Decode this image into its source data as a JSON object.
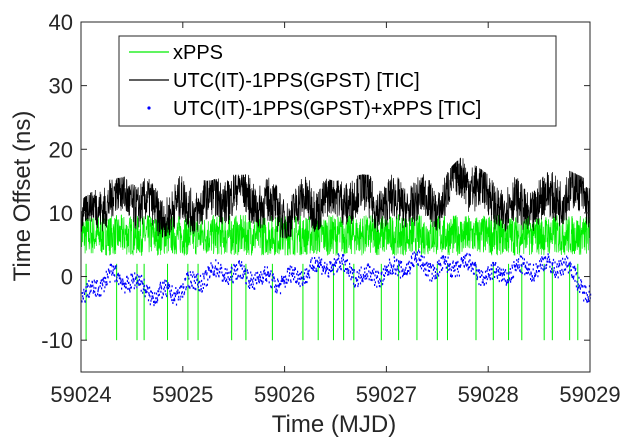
{
  "chart_data": {
    "type": "line",
    "title": "",
    "xlabel": "Time (MJD)",
    "ylabel": "Time Offset (ns)",
    "xlim": [
      59024,
      59029
    ],
    "ylim": [
      -15,
      40
    ],
    "xticks": [
      59024,
      59025,
      59026,
      59027,
      59028,
      59029
    ],
    "yticks": [
      -10,
      0,
      10,
      20,
      30,
      40
    ],
    "xtick_labels": [
      "59024",
      "59025",
      "59026",
      "59027",
      "59028",
      "59029"
    ],
    "ytick_labels": [
      "-10",
      "0",
      "10",
      "20",
      "30",
      "40"
    ],
    "grid": false,
    "legend_position": "top-left",
    "series": [
      {
        "name": "xPPS",
        "color": "#00ee00",
        "style": "line",
        "x": [
          59024.0,
          59024.25,
          59024.5,
          59024.75,
          59025.0,
          59025.25,
          59025.5,
          59025.75,
          59026.0,
          59026.25,
          59026.5,
          59026.75,
          59027.0,
          59027.25,
          59027.5,
          59027.75,
          59028.0,
          59028.25,
          59028.5,
          59028.75,
          59029.0
        ],
        "y_center": [
          6.5,
          6.5,
          6.5,
          6.5,
          6.5,
          6.5,
          6.5,
          6.5,
          6.5,
          6.5,
          6.5,
          6.5,
          6.5,
          6.5,
          6.5,
          6.5,
          6.5,
          6.5,
          6.5,
          6.5,
          6.5
        ],
        "y_band_min": [
          2,
          2,
          2,
          2,
          2,
          2,
          2,
          2,
          2,
          2,
          2,
          2,
          2,
          2,
          2,
          2,
          2,
          2,
          2,
          2,
          2
        ],
        "y_band_max": [
          10,
          10,
          10,
          10,
          10,
          10,
          10,
          10,
          10,
          10,
          10,
          10,
          10,
          10,
          10,
          10,
          10,
          10,
          10,
          10,
          10
        ],
        "dropout_x": [
          59024.05,
          59024.35,
          59024.55,
          59024.62,
          59024.85,
          59025.05,
          59025.15,
          59025.48,
          59025.62,
          59025.88,
          59026.18,
          59026.33,
          59026.48,
          59026.58,
          59026.68,
          59026.95,
          59027.12,
          59027.3,
          59027.5,
          59027.6,
          59027.88,
          59028.05,
          59028.2,
          59028.33,
          59028.55,
          59028.63,
          59028.8,
          59028.88
        ],
        "dropout_min": -10
      },
      {
        "name": "UTC(IT)-1PPS(GPST) [TIC]",
        "color": "#000000",
        "style": "line",
        "x": [
          59024.0,
          59024.25,
          59024.5,
          59024.75,
          59025.0,
          59025.25,
          59025.5,
          59025.75,
          59026.0,
          59026.25,
          59026.5,
          59026.75,
          59027.0,
          59027.25,
          59027.5,
          59027.75,
          59028.0,
          59028.25,
          59028.5,
          59028.75,
          59029.0
        ],
        "y_center": [
          9,
          11,
          12,
          11,
          12,
          11,
          12,
          12,
          11,
          12,
          11,
          12,
          12,
          13,
          11,
          15,
          12,
          12,
          12,
          12.5,
          11
        ],
        "y_band_min": [
          5,
          6,
          7,
          6,
          7,
          6,
          7,
          7,
          6,
          7,
          6,
          7,
          7,
          8,
          7,
          9,
          7,
          7,
          7,
          7,
          6
        ],
        "y_band_max": [
          12,
          15,
          16,
          15,
          16,
          15,
          16,
          16,
          15,
          16,
          15,
          16,
          16,
          17,
          15,
          19,
          16,
          16,
          16,
          17,
          15
        ]
      },
      {
        "name": "UTC(IT)-1PPS(GPST)+xPPS [TIC]",
        "color": "#0000ff",
        "style": "points",
        "x": [
          59024.0,
          59024.25,
          59024.5,
          59024.75,
          59025.0,
          59025.25,
          59025.5,
          59025.75,
          59026.0,
          59026.25,
          59026.5,
          59026.75,
          59027.0,
          59027.25,
          59027.5,
          59027.75,
          59028.0,
          59028.25,
          59028.5,
          59028.75,
          59029.0
        ],
        "y_center": [
          -4,
          -1,
          -1,
          -2,
          -1.5,
          -0.5,
          0,
          0.5,
          0,
          0.5,
          1,
          0.5,
          1.5,
          2,
          0,
          2,
          1,
          1,
          0.5,
          1.5,
          -2
        ],
        "y_band_min": [
          -7,
          -4,
          -4,
          -5,
          -4.5,
          -3.5,
          -3,
          -2.5,
          -3,
          -2.5,
          -2,
          -2.5,
          -1.5,
          -1,
          -3,
          -1,
          -2,
          -2,
          -2.5,
          -1.5,
          -5
        ],
        "y_band_max": [
          -1,
          2,
          2,
          1,
          1.5,
          2.5,
          3,
          3.5,
          3,
          3.5,
          4,
          3.5,
          4.5,
          5,
          3,
          5,
          4,
          4,
          3.5,
          4.5,
          1
        ]
      }
    ]
  }
}
